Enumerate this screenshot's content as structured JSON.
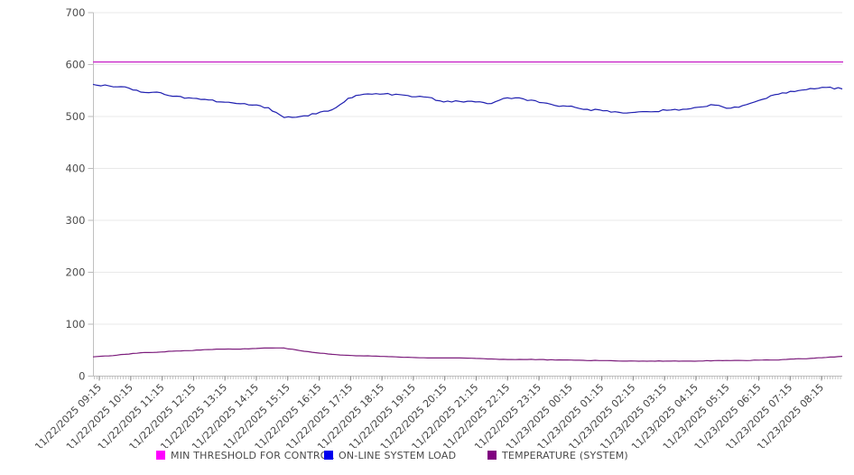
{
  "chart_data": {
    "type": "line",
    "title": "",
    "xlabel": "",
    "ylabel": "",
    "ylim": [
      0,
      700
    ],
    "y_ticks": [
      0,
      100,
      200,
      300,
      400,
      500,
      600,
      700
    ],
    "grid": "horizontal",
    "legend_position": "bottom",
    "background_color": "#ffffff",
    "grid_color": "#e9e9e9",
    "axis_color": "#c0c0c0",
    "tick_color": "#aaaaaa",
    "tick_label_color": "#4d4d4d",
    "x_labels": [
      "11/22/2025 09:15",
      "11/22/2025 10:15",
      "11/22/2025 11:15",
      "11/22/2025 12:15",
      "11/22/2025 13:15",
      "11/22/2025 14:15",
      "11/22/2025 15:15",
      "11/22/2025 16:15",
      "11/22/2025 17:15",
      "11/22/2025 18:15",
      "11/22/2025 19:15",
      "11/22/2025 20:15",
      "11/22/2025 21:15",
      "11/22/2025 22:15",
      "11/22/2025 23:15",
      "11/23/2025 00:15",
      "11/23/2025 01:15",
      "11/23/2025 02:15",
      "11/23/2025 03:15",
      "11/23/2025 04:15",
      "11/23/2025 05:15",
      "11/23/2025 06:15",
      "11/23/2025 07:15",
      "11/23/2025 08:15"
    ],
    "sample_tick_span": [
      -0.2,
      23.66
    ],
    "series": [
      {
        "name": "MIN THRESHOLD FOR CONTROL",
        "legend_color": "#ff00ff",
        "line_color": "#cc33cc",
        "kind": "constant",
        "value": 605
      },
      {
        "name": "ON-LINE SYSTEM LOAD",
        "legend_color": "#0000ee",
        "line_color": "#1f1fb0",
        "kind": "sampled",
        "noise": 1.8,
        "values": [
          562,
          559,
          557,
          547,
          547,
          539,
          536,
          533,
          528,
          525,
          522,
          517,
          498,
          500,
          505,
          513,
          535,
          543,
          543,
          543,
          538,
          537,
          528,
          529,
          528,
          525,
          536,
          534,
          527,
          521,
          520,
          514,
          511,
          508,
          508,
          509,
          512,
          514,
          518,
          522,
          516,
          523,
          533,
          543,
          548,
          554,
          556,
          553
        ]
      },
      {
        "name": "TEMPERATURE (SYSTEM)",
        "legend_color": "#800080",
        "line_color": "#7c1d7c",
        "kind": "sampled",
        "noise": 0.4,
        "values": [
          37,
          39,
          42,
          45,
          46,
          48,
          49,
          51,
          52,
          52,
          53,
          54,
          54,
          49,
          45,
          42,
          40,
          39,
          38,
          37,
          36,
          35,
          35,
          35,
          34,
          33,
          32,
          32,
          32,
          31,
          31,
          30,
          30,
          29,
          29,
          29,
          29,
          29,
          29,
          30,
          30,
          30,
          31,
          31,
          33,
          34,
          36,
          38
        ]
      }
    ]
  }
}
